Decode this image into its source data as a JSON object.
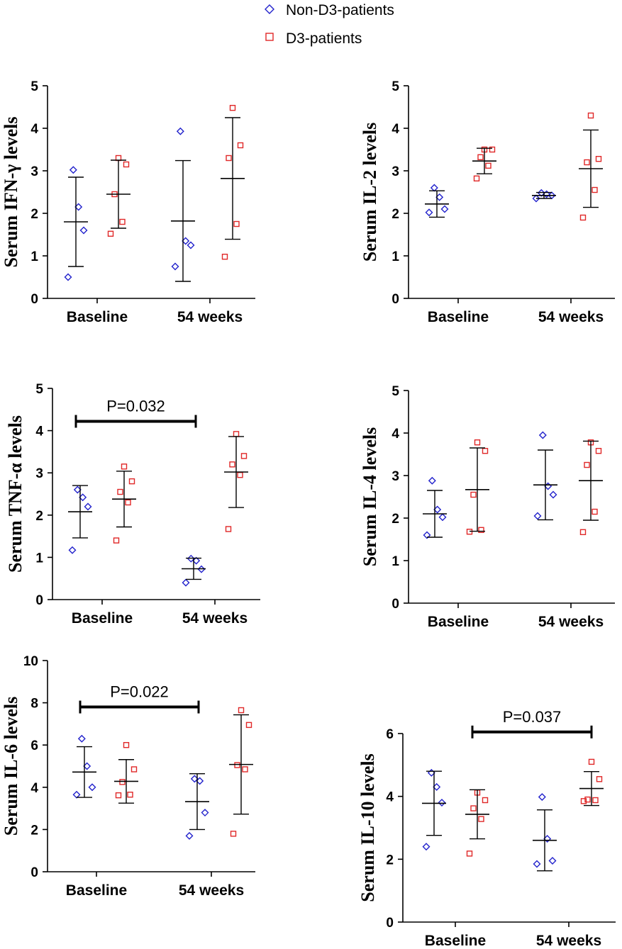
{
  "legend": {
    "items": [
      {
        "label": "Non-D3-patients",
        "marker": "diamond",
        "color": "#2222cc"
      },
      {
        "label": "D3-patients",
        "marker": "square",
        "color": "#e02828"
      }
    ]
  },
  "colors": {
    "non_d3": "#2222cc",
    "d3": "#e02828",
    "axis": "#000000"
  },
  "chart_data": [
    {
      "type": "scatter",
      "ylabel": "Serum IFN-γ levels",
      "categories": [
        "Baseline",
        "54 weeks"
      ],
      "ylim": [
        0,
        5
      ],
      "yticks": [
        "0",
        "1",
        "2",
        "3",
        "4",
        "5"
      ],
      "series": [
        {
          "name": "Non-D3-patients",
          "points": [
            [
              0.5,
              1.6,
              2.15,
              3.02
            ],
            [
              0.75,
              1.25,
              1.35,
              3.93
            ]
          ],
          "mean": [
            1.8,
            1.82
          ],
          "sd": [
            1.05,
            1.42
          ]
        },
        {
          "name": "D3-patients",
          "points": [
            [
              1.52,
              1.8,
              2.45,
              3.15,
              3.3
            ],
            [
              0.98,
              1.75,
              3.3,
              3.6,
              4.48
            ]
          ],
          "mean": [
            2.45,
            2.82
          ],
          "sd": [
            0.8,
            1.43
          ]
        }
      ],
      "significance": null
    },
    {
      "type": "scatter",
      "ylabel": "Serum IL-2 levels",
      "categories": [
        "Baseline",
        "54 weeks"
      ],
      "ylim": [
        0,
        5
      ],
      "yticks": [
        "0",
        "1",
        "2",
        "3",
        "4",
        "5"
      ],
      "series": [
        {
          "name": "Non-D3-patients",
          "points": [
            [
              2.02,
              2.1,
              2.38,
              2.6
            ],
            [
              2.35,
              2.42,
              2.45,
              2.48
            ]
          ],
          "mean": [
            2.22,
            2.42
          ],
          "sd": [
            0.31,
            0.07
          ]
        },
        {
          "name": "D3-patients",
          "points": [
            [
              2.82,
              3.12,
              3.32,
              3.5,
              3.5
            ],
            [
              1.9,
              2.55,
              3.2,
              3.28,
              4.3
            ]
          ],
          "mean": [
            3.23,
            3.05
          ],
          "sd": [
            0.3,
            0.91
          ]
        }
      ],
      "significance": null
    },
    {
      "type": "scatter",
      "ylabel": "Serum TNF-α levels",
      "categories": [
        "Baseline",
        "54 weeks"
      ],
      "ylim": [
        0,
        5
      ],
      "yticks": [
        "0",
        "1",
        "2",
        "3",
        "4",
        "5"
      ],
      "series": [
        {
          "name": "Non-D3-patients",
          "points": [
            [
              1.17,
              2.2,
              2.42,
              2.6
            ],
            [
              0.4,
              0.72,
              0.92,
              0.97
            ]
          ],
          "mean": [
            2.08,
            0.73
          ],
          "sd": [
            0.62,
            0.25
          ]
        },
        {
          "name": "D3-patients",
          "points": [
            [
              1.4,
              2.3,
              2.55,
              2.8,
              3.15
            ],
            [
              1.67,
              2.95,
              3.2,
              3.4,
              3.92
            ]
          ],
          "mean": [
            2.38,
            3.02
          ],
          "sd": [
            0.66,
            0.84
          ]
        }
      ],
      "significance": {
        "label": "P=0.032",
        "value": 4.22,
        "from": "Baseline, Non-D3-patients",
        "to": "54 weeks, Non-D3-patients"
      }
    },
    {
      "type": "scatter",
      "ylabel": "Serum IL-4 levels",
      "categories": [
        "Baseline",
        "54 weeks"
      ],
      "ylim": [
        0,
        5
      ],
      "yticks": [
        "0",
        "1",
        "2",
        "3",
        "4",
        "5"
      ],
      "series": [
        {
          "name": "Non-D3-patients",
          "points": [
            [
              1.6,
              2.02,
              2.2,
              2.88
            ],
            [
              2.05,
              2.55,
              2.75,
              3.95
            ]
          ],
          "mean": [
            2.1,
            2.78
          ],
          "sd": [
            0.55,
            0.82
          ]
        },
        {
          "name": "D3-patients",
          "points": [
            [
              1.68,
              1.72,
              2.55,
              3.58,
              3.78
            ],
            [
              1.67,
              2.15,
              3.25,
              3.58,
              3.78
            ]
          ],
          "mean": [
            2.67,
            2.88
          ],
          "sd": [
            0.98,
            0.93
          ]
        }
      ],
      "significance": null
    },
    {
      "type": "scatter",
      "ylabel": "Serum IL-6 levels",
      "categories": [
        "Baseline",
        "54 weeks"
      ],
      "ylim": [
        0,
        10
      ],
      "yticks": [
        "0",
        "2",
        "4",
        "6",
        "8",
        "10"
      ],
      "series": [
        {
          "name": "Non-D3-patients",
          "points": [
            [
              3.65,
              4.0,
              5.0,
              6.3
            ],
            [
              1.7,
              2.8,
              4.3,
              4.4
            ]
          ],
          "mean": [
            4.72,
            3.32
          ],
          "sd": [
            1.2,
            1.32
          ]
        },
        {
          "name": "D3-patients",
          "points": [
            [
              3.62,
              3.65,
              4.25,
              4.85,
              6.0
            ],
            [
              1.8,
              4.85,
              5.05,
              6.95,
              7.65
            ]
          ],
          "mean": [
            4.28,
            5.08
          ],
          "sd": [
            1.03,
            2.35
          ]
        }
      ],
      "significance": {
        "label": "P=0.022",
        "value": 7.8,
        "from": "Baseline, Non-D3-patients",
        "to": "54 weeks, Non-D3-patients"
      }
    },
    {
      "type": "scatter",
      "ylabel": "Serum IL-10 levels",
      "categories": [
        "Baseline",
        "54 weeks"
      ],
      "ylim": [
        0,
        6
      ],
      "yticks": [
        "0",
        "2",
        "4",
        "6"
      ],
      "series": [
        {
          "name": "Non-D3-patients",
          "points": [
            [
              2.4,
              3.8,
              4.3,
              4.75
            ],
            [
              1.85,
              1.95,
              2.65,
              3.98
            ]
          ],
          "mean": [
            3.78,
            2.6
          ],
          "sd": [
            1.02,
            0.97
          ]
        },
        {
          "name": "D3-patients",
          "points": [
            [
              2.18,
              3.28,
              3.62,
              3.88,
              4.12
            ],
            [
              3.85,
              3.88,
              3.9,
              4.55,
              5.1
            ]
          ],
          "mean": [
            3.43,
            4.25
          ],
          "sd": [
            0.78,
            0.54
          ]
        }
      ],
      "significance": {
        "label": "P=0.037",
        "value": 6.05,
        "from": "Baseline, D3-patients",
        "to": "54 weeks, D3-patients"
      }
    }
  ]
}
